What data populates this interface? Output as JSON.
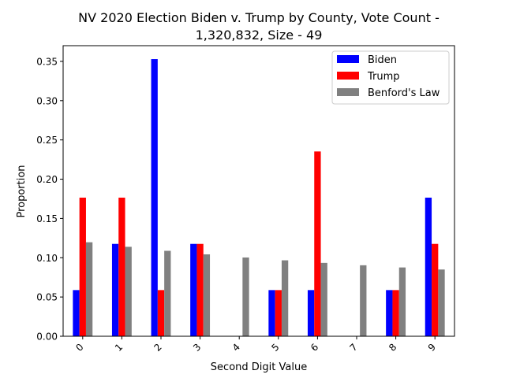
{
  "chart_data": {
    "type": "bar",
    "title_line1": "NV 2020 Election Biden v. Trump by County, Vote Count -",
    "title_line2": "1,320,832, Size - 49",
    "xlabel": "Second Digit Value",
    "ylabel": "Proportion",
    "categories": [
      "0",
      "1",
      "2",
      "3",
      "4",
      "5",
      "6",
      "7",
      "8",
      "9"
    ],
    "ylim": [
      0,
      0.37
    ],
    "yticks": [
      "0.00",
      "0.05",
      "0.10",
      "0.15",
      "0.20",
      "0.25",
      "0.30",
      "0.35"
    ],
    "grid": false,
    "legend_position": "top-right",
    "series": [
      {
        "name": "Biden",
        "color": "#0000ff",
        "values": [
          0.0588,
          0.1176,
          0.3529,
          0.1176,
          0.0,
          0.0588,
          0.0588,
          0.0,
          0.0588,
          0.1765
        ]
      },
      {
        "name": "Trump",
        "color": "#ff0000",
        "values": [
          0.1765,
          0.1765,
          0.0588,
          0.1176,
          0.0,
          0.0588,
          0.2353,
          0.0,
          0.0588,
          0.1176
        ]
      },
      {
        "name": "Benford's Law",
        "color": "#808080",
        "values": [
          0.1197,
          0.1139,
          0.1088,
          0.1043,
          0.1003,
          0.0967,
          0.0934,
          0.0904,
          0.0876,
          0.085
        ]
      }
    ]
  }
}
